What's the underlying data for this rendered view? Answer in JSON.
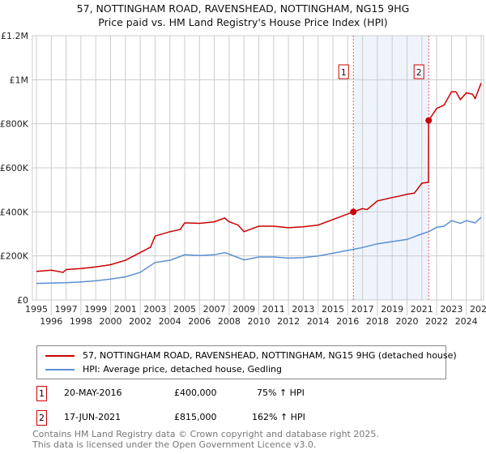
{
  "chart_data": {
    "type": "line",
    "title": "57, NOTTINGHAM ROAD, RAVENSHEAD, NOTTINGHAM, NG15 9HG",
    "subtitle": "Price paid vs. HM Land Registry's House Price Index (HPI)",
    "xlim": [
      1995,
      2025.1
    ],
    "ylim": [
      0,
      1200000
    ],
    "x_ticks": [
      "1995",
      "1996",
      "1997",
      "1998",
      "1999",
      "2000",
      "2001",
      "2002",
      "2003",
      "2004",
      "2005",
      "2006",
      "2007",
      "2008",
      "2009",
      "2010",
      "2011",
      "2012",
      "2013",
      "2014",
      "2015",
      "2016",
      "2017",
      "2018",
      "2019",
      "2020",
      "2021",
      "2022",
      "2023",
      "2024",
      "2025"
    ],
    "y_ticks": [
      {
        "v": 0,
        "l": "£0"
      },
      {
        "v": 200000,
        "l": "£200K"
      },
      {
        "v": 400000,
        "l": "£400K"
      },
      {
        "v": 600000,
        "l": "£600K"
      },
      {
        "v": 800000,
        "l": "£800K"
      },
      {
        "v": 1000000,
        "l": "£1M"
      },
      {
        "v": 1200000,
        "l": "£1.2M"
      }
    ],
    "grid": true,
    "series": [
      {
        "name": "57, NOTTINGHAM ROAD, RAVENSHEAD, NOTTINGHAM, NG15 9HG (detached house)",
        "color": "#cc0000",
        "points": [
          [
            1995,
            130000
          ],
          [
            1996,
            135000
          ],
          [
            1996.8,
            125000
          ],
          [
            1997,
            138000
          ],
          [
            1998,
            143000
          ],
          [
            1999,
            150000
          ],
          [
            2000,
            160000
          ],
          [
            2001,
            180000
          ],
          [
            2002,
            215000
          ],
          [
            2002.7,
            240000
          ],
          [
            2003,
            290000
          ],
          [
            2004,
            310000
          ],
          [
            2004.7,
            320000
          ],
          [
            2005,
            350000
          ],
          [
            2006,
            348000
          ],
          [
            2007,
            355000
          ],
          [
            2007.7,
            372000
          ],
          [
            2008,
            355000
          ],
          [
            2008.6,
            340000
          ],
          [
            2009,
            310000
          ],
          [
            2010,
            335000
          ],
          [
            2011,
            335000
          ],
          [
            2012,
            328000
          ],
          [
            2013,
            332000
          ],
          [
            2014,
            340000
          ],
          [
            2015,
            365000
          ],
          [
            2016.38,
            400000
          ],
          [
            2017,
            415000
          ],
          [
            2017.3,
            410000
          ],
          [
            2018,
            450000
          ],
          [
            2019,
            465000
          ],
          [
            2019.5,
            472000
          ],
          [
            2020,
            480000
          ],
          [
            2020.5,
            485000
          ],
          [
            2021,
            530000
          ],
          [
            2021.45,
            535000
          ],
          [
            2021.46,
            815000
          ],
          [
            2022,
            870000
          ],
          [
            2022.5,
            885000
          ],
          [
            2023,
            945000
          ],
          [
            2023.3,
            945000
          ],
          [
            2023.6,
            910000
          ],
          [
            2024,
            940000
          ],
          [
            2024.4,
            935000
          ],
          [
            2024.6,
            915000
          ],
          [
            2025,
            985000
          ]
        ]
      },
      {
        "name": "HPI: Average price, detached house, Gedling",
        "color": "#5b8fd4",
        "points": [
          [
            1995,
            75000
          ],
          [
            1996,
            77000
          ],
          [
            1997,
            78000
          ],
          [
            1998,
            82000
          ],
          [
            1999,
            87000
          ],
          [
            2000,
            95000
          ],
          [
            2001,
            105000
          ],
          [
            2002,
            125000
          ],
          [
            2003,
            170000
          ],
          [
            2004,
            180000
          ],
          [
            2005,
            205000
          ],
          [
            2006,
            202000
          ],
          [
            2007,
            205000
          ],
          [
            2007.7,
            215000
          ],
          [
            2008,
            208000
          ],
          [
            2009,
            182000
          ],
          [
            2010,
            195000
          ],
          [
            2011,
            195000
          ],
          [
            2012,
            190000
          ],
          [
            2013,
            192000
          ],
          [
            2014,
            200000
          ],
          [
            2015,
            212000
          ],
          [
            2016.38,
            230000
          ],
          [
            2017,
            238000
          ],
          [
            2018,
            255000
          ],
          [
            2019,
            265000
          ],
          [
            2020,
            275000
          ],
          [
            2021,
            300000
          ],
          [
            2021.46,
            310000
          ],
          [
            2022,
            330000
          ],
          [
            2022.5,
            335000
          ],
          [
            2023,
            360000
          ],
          [
            2023.6,
            348000
          ],
          [
            2024,
            360000
          ],
          [
            2024.6,
            350000
          ],
          [
            2025,
            375000
          ]
        ]
      }
    ],
    "annotations": [
      {
        "label": "1",
        "x": 2016.38,
        "y": 400000
      },
      {
        "label": "2",
        "x": 2021.46,
        "y": 815000
      }
    ],
    "shaded_range": [
      2016.38,
      2021.46
    ]
  },
  "legend": {
    "red": "57, NOTTINGHAM ROAD, RAVENSHEAD, NOTTINGHAM, NG15 9HG (detached house)",
    "blue": "HPI: Average price, detached house, Gedling"
  },
  "transactions": [
    {
      "n": "1",
      "date": "20-MAY-2016",
      "price": "£400,000",
      "hpi": "75% ↑ HPI"
    },
    {
      "n": "2",
      "date": "17-JUN-2021",
      "price": "£815,000",
      "hpi": "162% ↑ HPI"
    }
  ],
  "footer": {
    "line1": "Contains HM Land Registry data © Crown copyright and database right 2025.",
    "line2": "This data is licensed under the Open Government Licence v3.0."
  }
}
